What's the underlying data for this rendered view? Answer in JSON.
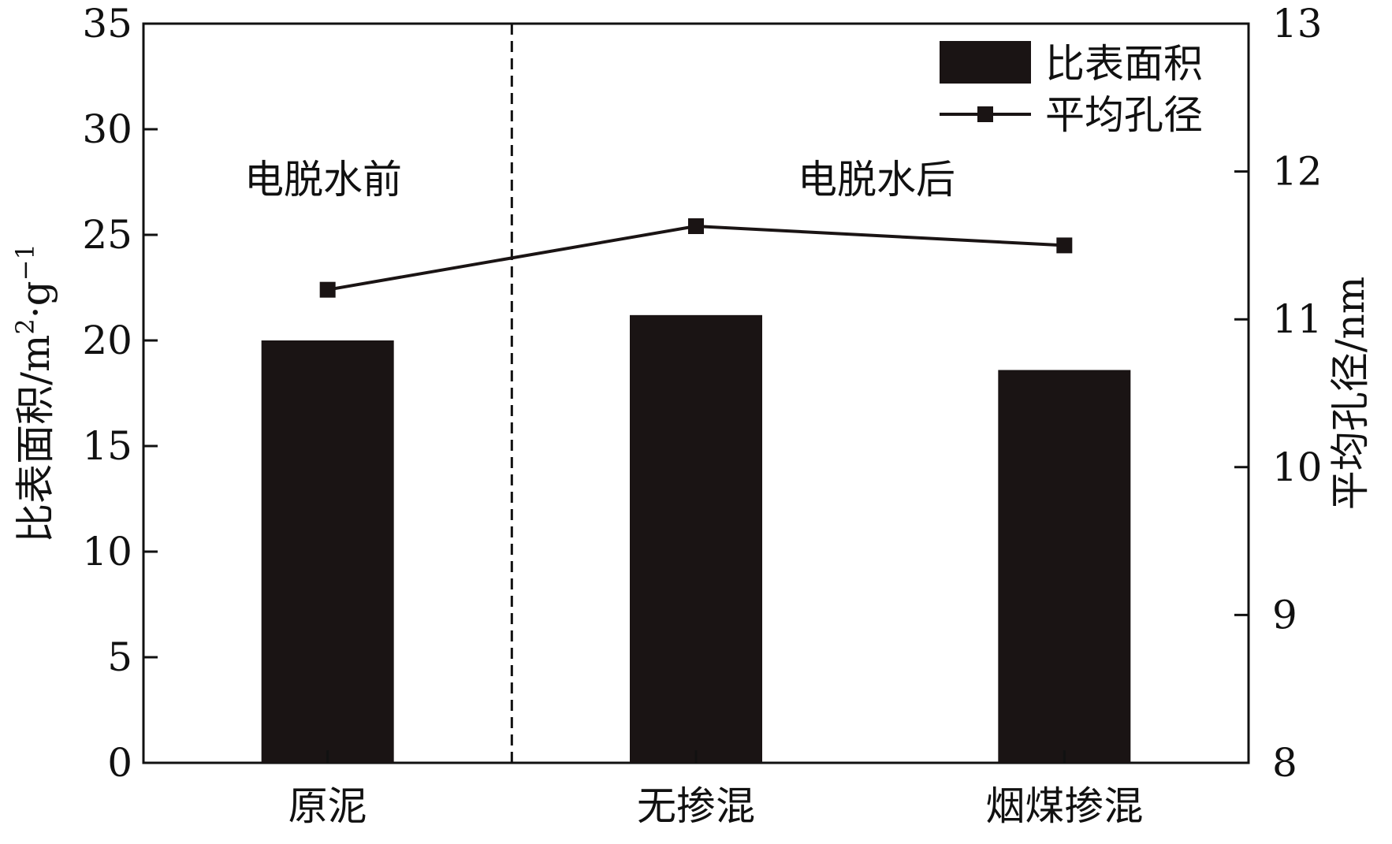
{
  "chart_data": {
    "type": "bar",
    "categories": [
      "原泥",
      "无掺混",
      "烟煤掺混"
    ],
    "series": [
      {
        "name": "比表面积",
        "type": "bar",
        "axis": "left",
        "values": [
          20.0,
          21.2,
          18.6
        ],
        "color": "#1a1414"
      },
      {
        "name": "平均孔径",
        "type": "line",
        "axis": "right",
        "marker": "square",
        "values": [
          11.2,
          11.63,
          11.5
        ],
        "color": "#1a1414"
      }
    ],
    "y_left": {
      "label_main": "比表面积/m",
      "label_sup1": "2",
      "label_mid": "·g",
      "label_sup2": "−1",
      "range": [
        0,
        35
      ],
      "ticks": [
        "0",
        "5",
        "10",
        "15",
        "20",
        "25",
        "30",
        "35"
      ]
    },
    "y_right": {
      "label": "平均孔径/nm",
      "range": [
        8,
        13
      ],
      "ticks": [
        "8",
        "9",
        "10",
        "11",
        "12",
        "13"
      ]
    },
    "annotations": {
      "before": "电脱水前",
      "after": "电脱水后"
    },
    "divider": {
      "style": "dashed",
      "between_categories": [
        0,
        1
      ]
    },
    "legend": {
      "position": "top-right",
      "bar_label": "比表面积",
      "line_label": "平均孔径"
    },
    "grid": false
  }
}
